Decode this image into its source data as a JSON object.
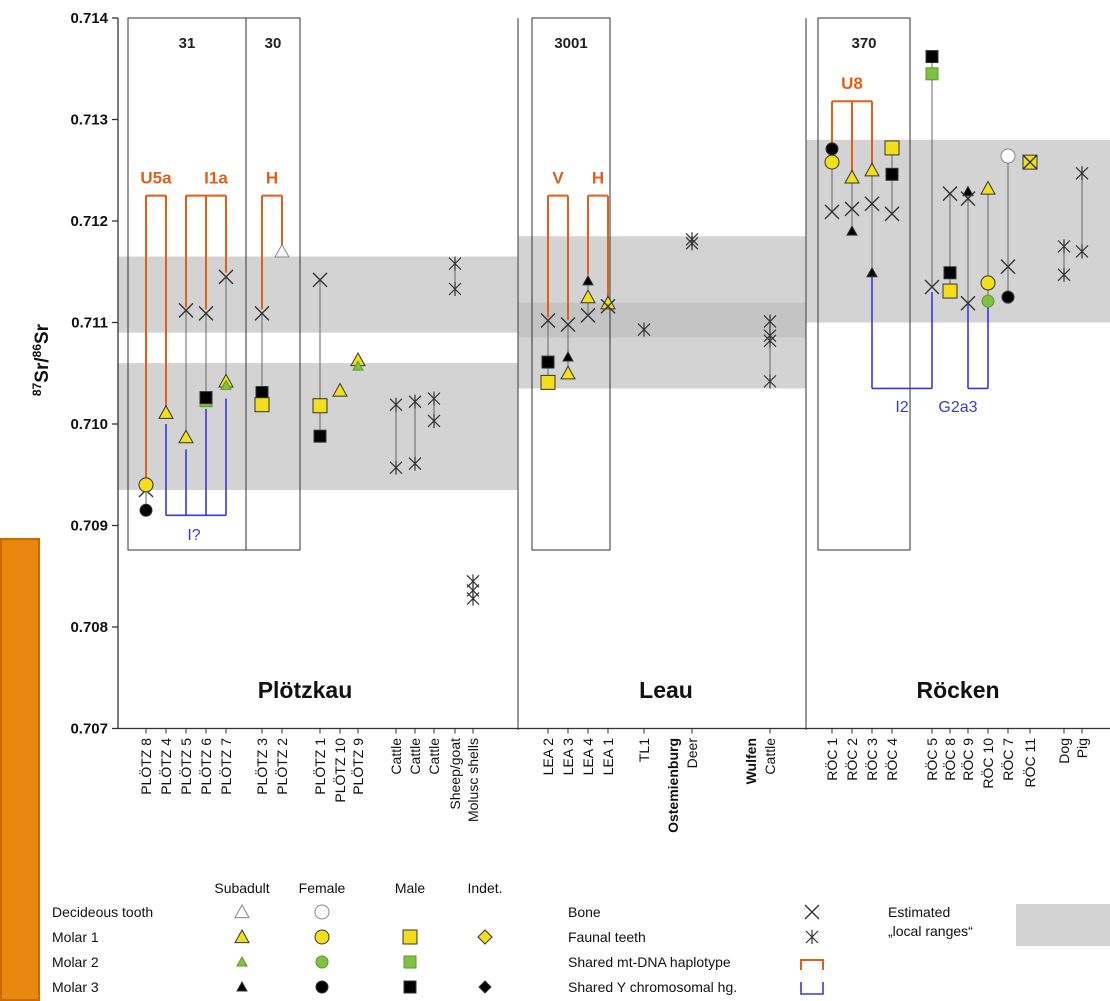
{
  "chart_data": {
    "type": "scatter",
    "title": "",
    "ylabel": "87Sr/86Sr",
    "ylabel_parts": {
      "sup1": "87",
      "base1": "Sr/",
      "sup2": "86",
      "base2": "Sr"
    },
    "ylim": [
      0.707,
      0.714
    ],
    "yticks": [
      "0.707",
      "0.708",
      "0.709",
      "0.710",
      "0.711",
      "0.712",
      "0.713",
      "0.714"
    ],
    "regions": [
      "Plötzkau",
      "Leau",
      "Röcken"
    ],
    "site_labels": [
      "Ostemienburg",
      "Wulfen"
    ],
    "categories": [
      "PLÖTZ 8",
      "PLÖTZ 4",
      "PLÖTZ 5",
      "PLÖTZ 6",
      "PLÖTZ 7",
      "PLÖTZ 3",
      "PLÖTZ 2",
      "PLÖTZ 1",
      "PLÖTZ 10",
      "PLÖTZ 9",
      "Cattle",
      "Cattle",
      "Cattle",
      "Sheep/goat",
      "Molusc shells",
      "LEA 2",
      "LEA 3",
      "LEA 4",
      "LEA 1",
      "TL1",
      "Deer",
      "Cattle",
      "RÖC 1",
      "RÖC 2",
      "RÖC 3",
      "RÖC 4",
      "RÖC 5",
      "RÖC 8",
      "RÖC 9",
      "RÖC 10",
      "RÖC 7",
      "RÖC 11",
      "Dog",
      "Pig"
    ],
    "grave_boxes": [
      "31",
      "30",
      "3001",
      "370"
    ],
    "local_ranges": [
      {
        "region": "Plötzkau",
        "ranges": [
          [
            0.70935,
            0.7106
          ],
          [
            0.7109,
            0.71165
          ]
        ]
      },
      {
        "region": "Leau",
        "ranges": [
          [
            0.71035,
            0.71085
          ],
          [
            0.71085,
            0.7112
          ],
          [
            0.7112,
            0.71185
          ]
        ]
      },
      {
        "region": "Röcken",
        "ranges": [
          [
            0.711,
            0.7128
          ]
        ]
      }
    ],
    "mt_haplotypes": [
      "U5a",
      "I1a",
      "H",
      "V",
      "H",
      "U8"
    ],
    "y_haplogroups": [
      "I?",
      "I2",
      "G2a3"
    ],
    "points": [
      {
        "x": 0,
        "sample": "bone",
        "y": 0.70935
      },
      {
        "x": 0,
        "sample": "molar1",
        "sex": "female",
        "y": 0.7094
      },
      {
        "x": 0,
        "sample": "molar3",
        "sex": "female",
        "y": 0.70915
      },
      {
        "x": 1,
        "sample": "molar1",
        "sex": "subadult",
        "y": 0.71011
      },
      {
        "x": 2,
        "sample": "bone",
        "y": 0.71112
      },
      {
        "x": 2,
        "sample": "molar1",
        "sex": "subadult",
        "y": 0.70987
      },
      {
        "x": 3,
        "sample": "bone",
        "y": 0.71109
      },
      {
        "x": 3,
        "sample": "molar2",
        "sex": "male",
        "y": 0.71023
      },
      {
        "x": 3,
        "sample": "molar3",
        "sex": "male",
        "y": 0.71026
      },
      {
        "x": 4,
        "sample": "bone",
        "y": 0.71145
      },
      {
        "x": 4,
        "sample": "molar1",
        "sex": "subadult",
        "y": 0.71042
      },
      {
        "x": 4,
        "sample": "molar2",
        "sex": "subadult",
        "y": 0.71038
      },
      {
        "x": 5,
        "sample": "bone",
        "y": 0.71109
      },
      {
        "x": 5,
        "sample": "molar3",
        "sex": "male",
        "y": 0.71031
      },
      {
        "x": 5,
        "sample": "molar1",
        "sex": "male",
        "y": 0.71019
      },
      {
        "x": 6,
        "sample": "deciduous",
        "sex": "subadult",
        "y": 0.7117
      },
      {
        "x": 7,
        "sample": "bone",
        "y": 0.71142
      },
      {
        "x": 7,
        "sample": "molar1",
        "sex": "male",
        "y": 0.71018
      },
      {
        "x": 7,
        "sample": "molar3",
        "sex": "male",
        "y": 0.70988
      },
      {
        "x": 8,
        "sample": "molar1",
        "sex": "subadult",
        "y": 0.71033
      },
      {
        "x": 9,
        "sample": "molar1",
        "sex": "subadult",
        "y": 0.71063
      },
      {
        "x": 9,
        "sample": "molar2",
        "sex": "subadult",
        "y": 0.71057
      },
      {
        "x": 10,
        "sample": "faunal",
        "y": 0.71019
      },
      {
        "x": 10,
        "sample": "faunal",
        "y": 0.70957
      },
      {
        "x": 11,
        "sample": "faunal",
        "y": 0.71022
      },
      {
        "x": 11,
        "sample": "faunal",
        "y": 0.70961
      },
      {
        "x": 12,
        "sample": "faunal",
        "y": 0.71025
      },
      {
        "x": 12,
        "sample": "faunal",
        "y": 0.71003
      },
      {
        "x": 13,
        "sample": "faunal",
        "y": 0.71158
      },
      {
        "x": 13,
        "sample": "faunal",
        "y": 0.71133
      },
      {
        "x": 14,
        "sample": "faunal",
        "y": 0.70845
      },
      {
        "x": 14,
        "sample": "faunal",
        "y": 0.70836
      },
      {
        "x": 14,
        "sample": "faunal",
        "y": 0.70828
      },
      {
        "x": 15,
        "sample": "bone",
        "y": 0.71102
      },
      {
        "x": 15,
        "sample": "molar3",
        "sex": "male",
        "y": 0.71061
      },
      {
        "x": 15,
        "sample": "molar1",
        "sex": "male",
        "y": 0.71041
      },
      {
        "x": 16,
        "sample": "bone",
        "y": 0.71098
      },
      {
        "x": 16,
        "sample": "molar3",
        "sex": "subadult",
        "y": 0.71066
      },
      {
        "x": 16,
        "sample": "molar1",
        "sex": "subadult",
        "y": 0.7105
      },
      {
        "x": 17,
        "sample": "molar3",
        "sex": "subadult",
        "y": 0.71141
      },
      {
        "x": 17,
        "sample": "molar1",
        "sex": "subadult",
        "y": 0.71125
      },
      {
        "x": 17,
        "sample": "bone",
        "y": 0.71107
      },
      {
        "x": 18,
        "sample": "molar1",
        "sex": "subadult",
        "y": 0.71119
      },
      {
        "x": 18,
        "sample": "bone",
        "y": 0.71116
      },
      {
        "x": 19,
        "sample": "faunal",
        "y": 0.71093
      },
      {
        "x": 20,
        "sample": "faunal",
        "y": 0.71182
      },
      {
        "x": 20,
        "sample": "faunal",
        "y": 0.71178
      },
      {
        "x": 21,
        "sample": "faunal",
        "y": 0.71101
      },
      {
        "x": 21,
        "sample": "faunal",
        "y": 0.71087
      },
      {
        "x": 21,
        "sample": "faunal",
        "y": 0.71082
      },
      {
        "x": 21,
        "sample": "faunal",
        "y": 0.71042
      },
      {
        "x": 22,
        "sample": "molar3",
        "sex": "female",
        "y": 0.71271
      },
      {
        "x": 22,
        "sample": "molar1",
        "sex": "female",
        "y": 0.71258
      },
      {
        "x": 22,
        "sample": "bone",
        "y": 0.71209
      },
      {
        "x": 23,
        "sample": "molar1",
        "sex": "subadult",
        "y": 0.71243
      },
      {
        "x": 23,
        "sample": "bone",
        "y": 0.71212
      },
      {
        "x": 23,
        "sample": "molar3",
        "sex": "subadult",
        "y": 0.7119
      },
      {
        "x": 24,
        "sample": "molar1",
        "sex": "subadult",
        "y": 0.7125
      },
      {
        "x": 24,
        "sample": "bone",
        "y": 0.71217
      },
      {
        "x": 24,
        "sample": "molar3",
        "sex": "subadult",
        "y": 0.71149
      },
      {
        "x": 25,
        "sample": "molar1",
        "sex": "male",
        "y": 0.71272
      },
      {
        "x": 25,
        "sample": "molar3",
        "sex": "male",
        "y": 0.71246
      },
      {
        "x": 25,
        "sample": "bone",
        "y": 0.71207
      },
      {
        "x": 26,
        "sample": "molar3",
        "sex": "male",
        "y": 0.71362
      },
      {
        "x": 26,
        "sample": "molar2",
        "sex": "male",
        "y": 0.71345
      },
      {
        "x": 26,
        "sample": "bone",
        "y": 0.71135
      },
      {
        "x": 27,
        "sample": "bone",
        "y": 0.71227
      },
      {
        "x": 27,
        "sample": "molar3",
        "sex": "male",
        "y": 0.71149
      },
      {
        "x": 27,
        "sample": "molar1",
        "sex": "male",
        "y": 0.71131
      },
      {
        "x": 28,
        "sample": "molar3",
        "sex": "subadult",
        "y": 0.71229
      },
      {
        "x": 28,
        "sample": "bone",
        "y": 0.71222
      },
      {
        "x": 28,
        "sample": "bone",
        "y": 0.71119
      },
      {
        "x": 29,
        "sample": "molar1",
        "sex": "subadult",
        "y": 0.71232
      },
      {
        "x": 29,
        "sample": "molar1",
        "sex": "female",
        "y": 0.71139
      },
      {
        "x": 29,
        "sample": "molar2",
        "sex": "female",
        "y": 0.71121
      },
      {
        "x": 30,
        "sample": "deciduous",
        "sex": "female",
        "y": 0.71264
      },
      {
        "x": 30,
        "sample": "bone",
        "y": 0.71155
      },
      {
        "x": 30,
        "sample": "molar3",
        "sex": "female",
        "y": 0.71125
      },
      {
        "x": 31,
        "sample": "molar1",
        "sex": "male",
        "y": 0.71258
      },
      {
        "x": 31,
        "sample": "bone",
        "y": 0.71258
      },
      {
        "x": 32,
        "sample": "faunal",
        "y": 0.71175
      },
      {
        "x": 32,
        "sample": "faunal",
        "y": 0.71147
      },
      {
        "x": 33,
        "sample": "faunal",
        "y": 0.71247
      },
      {
        "x": 33,
        "sample": "faunal",
        "y": 0.7117
      }
    ],
    "colors": {
      "yellow": "#F2DF1A",
      "green": "#7DC242",
      "black": "#000000",
      "orange": "#E0601A",
      "blue": "#3A3AD8",
      "range": "#D3D3D3"
    }
  },
  "legend": {
    "columns": [
      "Subadult",
      "Female",
      "Male",
      "Indet."
    ],
    "rows": [
      "Decideous tooth",
      "Molar 1",
      "Molar 2",
      "Molar 3"
    ],
    "right": [
      "Bone",
      "Faunal teeth",
      "Shared mt-DNA haplotype",
      "Shared Y chromosomal hg."
    ],
    "range_label_1": "Estimated",
    "range_label_2": "„local ranges“"
  }
}
